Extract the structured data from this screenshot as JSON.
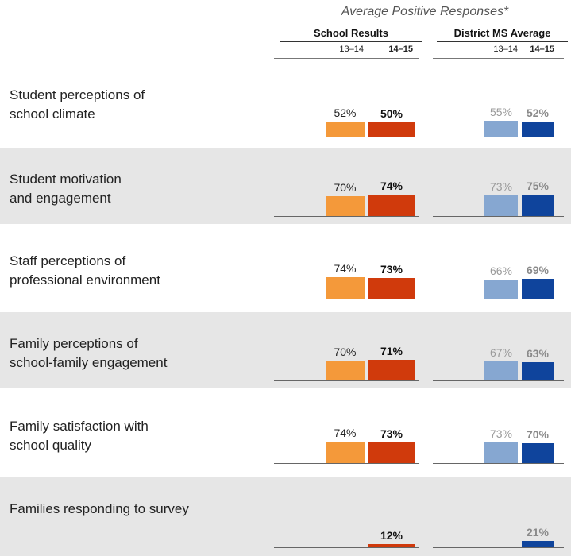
{
  "header": {
    "title": "Average Positive Responses*",
    "school_group": "School Results",
    "district_group": "District MS Average",
    "year_prev": "13–14",
    "year_curr": "14–15"
  },
  "colors": {
    "school_prev": "#f4993a",
    "school_curr": "#d03a0c",
    "district_prev": "#86a7d1",
    "district_curr": "#0f449c",
    "row_shade": "#e6e6e6"
  },
  "chart_data": {
    "type": "bar",
    "title": "Average Positive Responses*",
    "series": [
      {
        "name": "School Results 13–14",
        "values": [
          52,
          70,
          74,
          70,
          74,
          null
        ]
      },
      {
        "name": "School Results 14–15",
        "values": [
          50,
          74,
          73,
          71,
          73,
          12
        ]
      },
      {
        "name": "District MS Average 13–14",
        "values": [
          55,
          73,
          66,
          67,
          73,
          null
        ]
      },
      {
        "name": "District MS Average 14–15",
        "values": [
          52,
          75,
          69,
          63,
          70,
          21
        ]
      }
    ],
    "categories": [
      "Student perceptions of\nschool climate",
      "Student motivation\nand engagement",
      "Staff perceptions of\nprofessional environment",
      "Family perceptions of\nschool-family engagement",
      "Family satisfaction with\nschool quality",
      "Families responding to survey"
    ],
    "value_labels": [
      [
        "52%",
        "50%",
        "55%",
        "52%"
      ],
      [
        "70%",
        "74%",
        "73%",
        "75%"
      ],
      [
        "74%",
        "73%",
        "66%",
        "69%"
      ],
      [
        "70%",
        "71%",
        "67%",
        "63%"
      ],
      [
        "74%",
        "73%",
        "73%",
        "70%"
      ],
      [
        "",
        "12%",
        "",
        "21%"
      ]
    ],
    "ylim": [
      0,
      100
    ],
    "grid": false
  }
}
